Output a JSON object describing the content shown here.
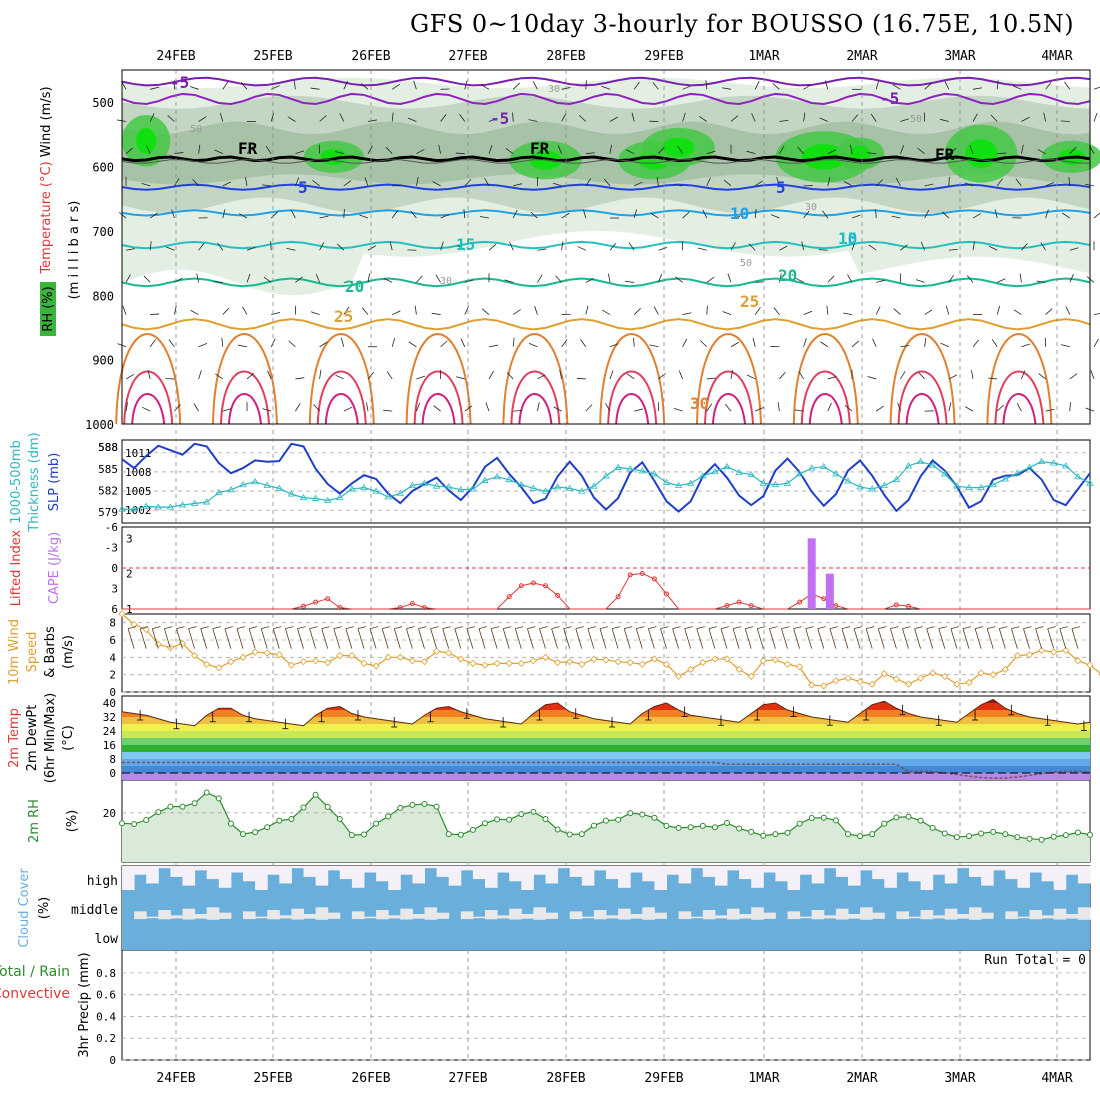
{
  "title": "GFS 0~10day 3-hourly for BOUSSO (16.75E, 10.5N)",
  "dates": [
    "24FEB",
    "25FEB",
    "26FEB",
    "27FEB",
    "28FEB",
    "29FEB",
    "1MAR",
    "2MAR",
    "3MAR",
    "4MAR"
  ],
  "colors": {
    "slp": "#1f3fc8",
    "thickness": "#2cb8c0",
    "lifted": "#e03838",
    "cape": "#c070f0",
    "wind": "#e0a030",
    "rh": "#2e8b2e",
    "cloud": "#6aaedc",
    "rhfill": "#d9ead9"
  },
  "chart_data": [
    {
      "type": "heatmap",
      "panel": "upper-air",
      "ylabel_parts": [
        "RH (%)",
        "Temperature",
        "(°C)",
        "Wind",
        "(m/s)"
      ],
      "ylabel2": "(m i l l i b a r s)",
      "yticks": [
        500,
        600,
        700,
        800,
        900,
        1000
      ],
      "ylim": [
        450,
        1000
      ],
      "contour_labels": [
        "-5",
        "-5",
        "-5",
        "FR",
        "FR",
        "FR",
        "5",
        "5",
        "10",
        "10",
        "15",
        "15",
        "20",
        "20",
        "25",
        "25",
        "30"
      ],
      "rh_labels": [
        "30",
        "50",
        "50",
        "30",
        "50",
        "30"
      ]
    },
    {
      "type": "line",
      "panel": "slp-thickness",
      "ylabel_parts": [
        "1000-500mb",
        "Thickness (dm)",
        "SLP (mb)"
      ],
      "left_ticks": [
        "588",
        "585",
        "582",
        "579"
      ],
      "right_ticks": [
        "1011",
        "1008",
        "1005",
        "1002"
      ],
      "series": [
        {
          "name": "SLP (mb)",
          "values": [
            1010.0,
            1008.6,
            1010.5,
            1012.1,
            1011.4,
            1010.7,
            1012.4,
            1012.0,
            1009.4,
            1007.8,
            1008.6,
            1009.8,
            1009.6,
            1009.7,
            1012.4,
            1012.0,
            1008.5,
            1006.1,
            1004.6,
            1006.2,
            1007.5,
            1006.9,
            1004.6,
            1003.1,
            1005.0,
            1006.1,
            1007.1,
            1005.1,
            1003.6,
            1005.6,
            1008.8,
            1010.2,
            1007.7,
            1005.6,
            1003.1,
            1003.8,
            1007.3,
            1009.6,
            1007.4,
            1004.0,
            1002.1,
            1003.9,
            1007.9,
            1009.5,
            1006.6,
            1003.4,
            1001.8,
            1003.4,
            1007.3,
            1009.2,
            1007.1,
            1004.3,
            1002.8,
            1004.2,
            1008.2,
            1010.1,
            1008.0,
            1004.9,
            1002.7,
            1004.5,
            1008.2,
            1009.8,
            1007.4,
            1004.4,
            1001.9,
            1003.6,
            1007.3,
            1009.8,
            1008.2,
            1005.7,
            1002.4,
            1003.4,
            1006.8,
            1007.4,
            1007.5,
            1008.6,
            1006.8,
            1003.6,
            1002.8,
            1005.3,
            1007.8
          ]
        },
        {
          "name": "1000-500mb Thickness (dm)",
          "values": [
            579.4,
            579.4,
            579.8,
            579.7,
            579.7,
            580.0,
            580.2,
            580.4,
            581.7,
            582.1,
            582.8,
            583.2,
            582.7,
            582.3,
            581.5,
            581.0,
            580.9,
            580.6,
            581.0,
            582.2,
            582.4,
            581.9,
            581.1,
            581.6,
            582.7,
            583.0,
            582.6,
            582.5,
            582.1,
            582.2,
            583.4,
            583.9,
            583.5,
            582.8,
            582.3,
            581.9,
            582.5,
            582.3,
            581.9,
            582.6,
            584.0,
            585.2,
            585.0,
            584.7,
            584.3,
            583.1,
            582.7,
            583.0,
            584.0,
            584.6,
            585.3,
            584.5,
            584.2,
            583.0,
            582.8,
            583.0,
            584.3,
            585.1,
            585.3,
            584.3,
            583.3,
            582.5,
            582.2,
            582.7,
            583.5,
            585.4,
            586.0,
            585.5,
            584.3,
            582.6,
            582.4,
            582.4,
            582.8,
            583.6,
            584.4,
            585.2,
            586.0,
            585.8,
            585.4,
            583.9,
            583.0
          ]
        }
      ]
    },
    {
      "type": "bar",
      "panel": "cape-lifted",
      "ylabel_parts": [
        "Lifted Index",
        "CAPE (J/kg)"
      ],
      "left_ticks": [
        "-6",
        "-3",
        "0",
        "3",
        "6"
      ],
      "right_ticks": [
        "3",
        "2",
        "1"
      ],
      "cape_values": [
        3.0,
        2.0
      ],
      "lifted_series": {
        "name": "Lifted Index",
        "values": [
          6,
          6,
          6,
          6,
          6,
          6,
          6,
          6,
          6,
          6,
          6,
          6,
          6,
          6,
          6,
          5.6,
          5.0,
          4.5,
          5.8,
          6,
          6,
          6,
          6,
          5.8,
          5.2,
          5.8,
          6,
          6,
          6,
          6,
          6,
          6,
          4.2,
          2.6,
          2.2,
          2.6,
          4.0,
          6,
          6,
          6,
          6,
          4.2,
          1.0,
          0.8,
          1.6,
          3.8,
          6,
          6,
          6,
          6,
          5.5,
          5.0,
          5.5,
          6,
          6,
          6,
          5.0,
          3.8,
          4.5,
          5.5,
          6,
          6,
          6,
          6,
          5.4,
          5.6,
          6,
          6,
          6,
          6,
          6,
          6,
          6,
          6,
          6,
          6,
          6,
          6,
          6,
          6,
          6
        ]
      }
    },
    {
      "type": "line",
      "panel": "10m-wind",
      "ylabel_parts": [
        "10m Wind",
        "Speed",
        "& Barbs",
        "(m/s)"
      ],
      "yticks": [
        "8",
        "6",
        "4",
        "2",
        "0"
      ],
      "ylim": [
        0,
        9
      ],
      "series": [
        {
          "name": "10m Wind Speed",
          "values": [
            9.0,
            7.8,
            7.2,
            5.5,
            5.1,
            5.6,
            4.2,
            3.2,
            2.8,
            3.5,
            4.0,
            4.6,
            4.5,
            4.3,
            3.1,
            3.5,
            3.6,
            3.4,
            4.2,
            4.2,
            3.3,
            3.0,
            4.0,
            4.0,
            3.6,
            3.5,
            4.7,
            4.5,
            3.8,
            3.3,
            3.1,
            3.3,
            3.3,
            3.3,
            3.6,
            4.0,
            3.4,
            3.5,
            3.2,
            3.8,
            3.7,
            3.5,
            3.4,
            3.2,
            3.8,
            3.2,
            1.8,
            2.6,
            3.4,
            3.8,
            3.8,
            2.6,
            1.8,
            3.6,
            3.7,
            3.2,
            2.9,
            0.8,
            0.7,
            1.3,
            1.6,
            1.2,
            0.9,
            2.1,
            1.5,
            0.9,
            1.6,
            2.2,
            1.8,
            0.9,
            1.1,
            2.2,
            2.0,
            2.6,
            4.2,
            4.3,
            4.8,
            4.6,
            4.8,
            3.6,
            3.1,
            2.0,
            1.2,
            2.0,
            3.7
          ]
        }
      ]
    },
    {
      "type": "area",
      "panel": "2m-temp",
      "ylabel_parts": [
        "2m Temp",
        "2m DewPt",
        "(6hr Min/Max)",
        "(°C)"
      ],
      "yticks": [
        "40",
        "32",
        "24",
        "16",
        "8",
        "0"
      ],
      "ylim": [
        -4,
        44
      ],
      "series": [
        {
          "name": "2m Temp",
          "values": [
            35,
            34,
            33,
            31,
            29,
            28,
            27,
            33,
            37,
            37,
            33,
            31,
            30,
            29,
            28,
            27,
            33,
            37,
            38,
            34,
            32,
            31,
            30,
            29,
            28,
            33,
            37,
            38,
            35,
            33,
            31,
            30,
            29,
            28,
            34,
            39,
            40,
            35,
            33,
            31,
            30,
            29,
            28,
            34,
            38,
            40,
            36,
            33,
            32,
            31,
            30,
            29,
            34,
            39,
            40,
            36,
            34,
            32,
            31,
            30,
            29,
            34,
            39,
            41,
            37,
            34,
            32,
            31,
            30,
            29,
            34,
            39,
            42,
            37,
            34,
            32,
            31,
            30,
            29,
            28,
            29
          ]
        }
      ]
    },
    {
      "type": "line",
      "panel": "2m-rh",
      "ylabel_parts": [
        "2m RH",
        "(%)"
      ],
      "yticks": [
        "20"
      ],
      "ylim": [
        5,
        30
      ],
      "series": [
        {
          "name": "2m RH",
          "values": [
            16.8,
            16.6,
            17.8,
            20.2,
            21.9,
            21.9,
            22.9,
            26.2,
            24.4,
            16.7,
            13.5,
            14.1,
            15.6,
            17.6,
            18.1,
            21.6,
            25.5,
            21.8,
            18.1,
            13.2,
            13.4,
            16.7,
            18.9,
            21.5,
            22.4,
            22.7,
            21.9,
            13.5,
            13.3,
            14.8,
            16.8,
            18.0,
            17.9,
            19.6,
            20.3,
            18.1,
            14.9,
            13.4,
            13.5,
            16.1,
            17.6,
            17.9,
            19.9,
            19.5,
            18.5,
            16.0,
            15.4,
            15.6,
            16.0,
            15.6,
            16.9,
            15.2,
            14.2,
            13.0,
            13.5,
            13.9,
            16.7,
            18.4,
            18.5,
            17.7,
            13.5,
            12.9,
            13.5,
            16.7,
            18.6,
            18.8,
            17.6,
            15.4,
            13.7,
            12.6,
            12.9,
            13.7,
            14.2,
            13.5,
            12.6,
            12.1,
            11.8,
            12.7,
            13.2,
            14.0,
            13.3
          ]
        }
      ]
    },
    {
      "type": "heatmap",
      "panel": "cloud-cover",
      "ylabel_parts": [
        "Cloud Cover",
        "(%)"
      ],
      "levels": [
        "high",
        "middle",
        "low"
      ]
    },
    {
      "type": "bar",
      "panel": "precip",
      "ylabel_parts": [
        "Total / Rain",
        "Convective",
        "3hr Precip (mm)"
      ],
      "yticks": [
        "0.8",
        "0.6",
        "0.4",
        "0.2",
        "0"
      ],
      "ylim": [
        0,
        1
      ],
      "run_total": "Run Total = 0",
      "values": []
    }
  ]
}
